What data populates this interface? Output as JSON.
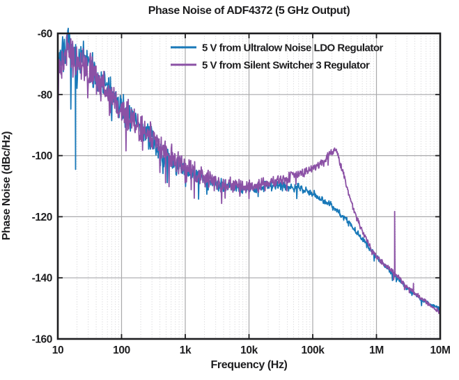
{
  "chart_data": {
    "type": "line",
    "title": "Phase Noise of ADF4372 (5 GHz Output)",
    "xlabel": "Frequency (Hz)",
    "ylabel": "Phase Noise (dBc/Hz)",
    "x_scale": "log",
    "xlim": [
      10,
      10000000
    ],
    "ylim": [
      -160,
      -60
    ],
    "x_ticks": [
      {
        "value": 10,
        "label": "10"
      },
      {
        "value": 100,
        "label": "100"
      },
      {
        "value": 1000,
        "label": "1k"
      },
      {
        "value": 10000,
        "label": "10k"
      },
      {
        "value": 100000,
        "label": "100k"
      },
      {
        "value": 1000000,
        "label": "1M"
      },
      {
        "value": 10000000,
        "label": "10M"
      }
    ],
    "y_ticks": [
      {
        "value": -60,
        "label": "-60"
      },
      {
        "value": -80,
        "label": "-80"
      },
      {
        "value": -100,
        "label": "-100"
      },
      {
        "value": -120,
        "label": "-120"
      },
      {
        "value": -140,
        "label": "-140"
      },
      {
        "value": -160,
        "label": "-160"
      }
    ],
    "grid": {
      "major_solid": true,
      "minor_x_dotted": true
    },
    "legend_position": "top-right-inside",
    "colors": {
      "border": "#1d1d1f",
      "major_grid": "#a9a9ab",
      "minor_grid": "#cfcfd2",
      "text": "#1d1d1f"
    },
    "series": [
      {
        "name": "5 V from Ultralow Noise LDO Regulator",
        "color": "#1878b8",
        "seed": 7,
        "anchors": [
          [
            10,
            -70
          ],
          [
            12,
            -65
          ],
          [
            14,
            -64.5
          ],
          [
            17,
            -66
          ],
          [
            20,
            -69
          ],
          [
            25,
            -68
          ],
          [
            32,
            -71
          ],
          [
            40,
            -73.5
          ],
          [
            50,
            -75.5
          ],
          [
            65,
            -79
          ],
          [
            80,
            -82
          ],
          [
            100,
            -84
          ],
          [
            130,
            -86.5
          ],
          [
            160,
            -88.5
          ],
          [
            200,
            -90.5
          ],
          [
            260,
            -93.5
          ],
          [
            320,
            -96
          ],
          [
            400,
            -98.5
          ],
          [
            500,
            -100.5
          ],
          [
            650,
            -102.5
          ],
          [
            800,
            -103.8
          ],
          [
            1000,
            -105
          ],
          [
            1300,
            -106
          ],
          [
            1600,
            -107
          ],
          [
            2000,
            -107.8
          ],
          [
            2600,
            -108.6
          ],
          [
            3200,
            -109.2
          ],
          [
            4000,
            -109.7
          ],
          [
            5000,
            -109.9
          ],
          [
            6500,
            -110.3
          ],
          [
            8000,
            -110.6
          ],
          [
            10000,
            -110.6
          ],
          [
            15000,
            -110.3
          ],
          [
            20000,
            -110
          ],
          [
            30000,
            -109.8
          ],
          [
            50000,
            -110.2
          ],
          [
            80000,
            -111.2
          ],
          [
            100000,
            -112.2
          ],
          [
            150000,
            -114.6
          ],
          [
            200000,
            -116.5
          ],
          [
            250000,
            -118.3
          ],
          [
            300000,
            -120
          ],
          [
            400000,
            -122.8
          ],
          [
            500000,
            -125.3
          ],
          [
            700000,
            -129.3
          ],
          [
            1000000,
            -133
          ],
          [
            1500000,
            -136.8
          ],
          [
            2000000,
            -139.5
          ],
          [
            3000000,
            -143.3
          ],
          [
            5000000,
            -147
          ],
          [
            7000000,
            -148.8
          ],
          [
            10000000,
            -150.2
          ]
        ],
        "noise_envelope": [
          [
            10,
            7.5
          ],
          [
            30,
            7
          ],
          [
            100,
            6
          ],
          [
            300,
            5
          ],
          [
            1000,
            4
          ],
          [
            3000,
            3
          ],
          [
            10000,
            2.3
          ],
          [
            30000,
            2
          ],
          [
            100000,
            1.7
          ],
          [
            300000,
            1.3
          ],
          [
            1000000,
            1.1
          ],
          [
            3000000,
            0.9
          ],
          [
            10000000,
            0.8
          ]
        ],
        "spikes": [
          [
            19,
            -104.5
          ]
        ]
      },
      {
        "name": "5 V from Silent Switcher 3 Regulator",
        "color": "#8b51a5",
        "seed": 13,
        "anchors": [
          [
            10,
            -73
          ],
          [
            12,
            -67
          ],
          [
            14,
            -66
          ],
          [
            17,
            -68
          ],
          [
            20,
            -71
          ],
          [
            25,
            -69.5
          ],
          [
            32,
            -72
          ],
          [
            40,
            -74.5
          ],
          [
            50,
            -76.5
          ],
          [
            65,
            -80
          ],
          [
            80,
            -83
          ],
          [
            100,
            -85
          ],
          [
            130,
            -87
          ],
          [
            160,
            -89
          ],
          [
            200,
            -90.8
          ],
          [
            260,
            -93
          ],
          [
            320,
            -95
          ],
          [
            400,
            -97
          ],
          [
            500,
            -99
          ],
          [
            650,
            -101
          ],
          [
            800,
            -102.3
          ],
          [
            1000,
            -103.5
          ],
          [
            1300,
            -105
          ],
          [
            1600,
            -106
          ],
          [
            2000,
            -107
          ],
          [
            2600,
            -108
          ],
          [
            3200,
            -108.7
          ],
          [
            4000,
            -109.3
          ],
          [
            5000,
            -109.6
          ],
          [
            6500,
            -110
          ],
          [
            8000,
            -110.2
          ],
          [
            10000,
            -110.2
          ],
          [
            15000,
            -109.4
          ],
          [
            20000,
            -108.8
          ],
          [
            30000,
            -107.8
          ],
          [
            50000,
            -106.3
          ],
          [
            80000,
            -105.2
          ],
          [
            120000,
            -103.5
          ],
          [
            160000,
            -100.8
          ],
          [
            200000,
            -98.8
          ],
          [
            220000,
            -98
          ],
          [
            240000,
            -99
          ],
          [
            270000,
            -102.5
          ],
          [
            300000,
            -106
          ],
          [
            350000,
            -111
          ],
          [
            400000,
            -114.8
          ],
          [
            500000,
            -120.8
          ],
          [
            600000,
            -124.8
          ],
          [
            700000,
            -127.8
          ],
          [
            800000,
            -130
          ],
          [
            1000000,
            -133
          ],
          [
            1300000,
            -135.4
          ],
          [
            1600000,
            -137
          ],
          [
            2000000,
            -138.8
          ],
          [
            2500000,
            -141
          ],
          [
            3000000,
            -142.8
          ],
          [
            4000000,
            -145
          ],
          [
            5000000,
            -146.6
          ],
          [
            7000000,
            -149
          ],
          [
            10000000,
            -151.3
          ]
        ],
        "noise_envelope": [
          [
            10,
            7.5
          ],
          [
            30,
            7
          ],
          [
            100,
            6.5
          ],
          [
            300,
            5.5
          ],
          [
            1000,
            4.5
          ],
          [
            3000,
            3.2
          ],
          [
            10000,
            2.5
          ],
          [
            30000,
            2.2
          ],
          [
            100000,
            2
          ],
          [
            200000,
            1.6
          ],
          [
            300000,
            1.4
          ],
          [
            1000000,
            1.1
          ],
          [
            3000000,
            0.9
          ],
          [
            10000000,
            0.8
          ]
        ],
        "spikes": [
          [
            1930000,
            -118.3
          ],
          [
            3800000,
            -141.8
          ]
        ]
      }
    ]
  }
}
